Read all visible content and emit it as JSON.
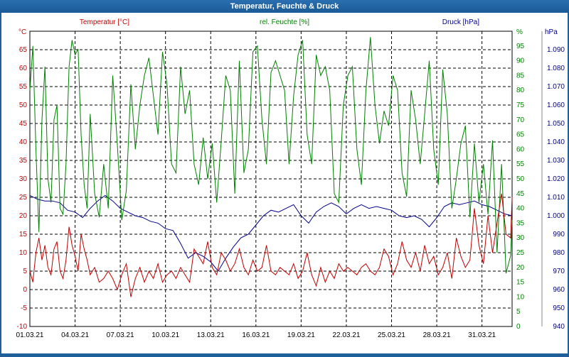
{
  "window": {
    "title": "Temperatur, Feuchte & Druck"
  },
  "chart_data": {
    "type": "line",
    "title": "Temperatur, Feuchte & Druck",
    "grid": true,
    "x_tick_labels": [
      "01.03.21",
      "04.03.21",
      "07.03.21",
      "10.03.21",
      "13.03.21",
      "16.03.21",
      "19.03.21",
      "22.03.21",
      "25.03.21",
      "28.03.21",
      "31.03.21"
    ],
    "x_range_days": [
      0,
      32
    ],
    "axes": {
      "temperature": {
        "label": "Temperatur [°C]",
        "unit": "°C",
        "color": "#c00000",
        "range": [
          -10,
          70
        ],
        "ticks": [
          -10,
          -5,
          0,
          5,
          10,
          15,
          20,
          25,
          30,
          35,
          40,
          45,
          50,
          55,
          60,
          65
        ]
      },
      "humidity": {
        "label": "rel. Feuchte [%]",
        "unit": "%",
        "color": "#008000",
        "range": [
          0,
          100
        ],
        "ticks": [
          0,
          5,
          10,
          15,
          20,
          25,
          30,
          35,
          40,
          45,
          50,
          55,
          60,
          65,
          70,
          75,
          80,
          85,
          90,
          95
        ]
      },
      "pressure": {
        "label": "Druck [hPa]",
        "unit": "hPa",
        "color": "#00008b",
        "range": [
          940,
          1100
        ],
        "ticks": [
          "940",
          "950",
          "960",
          "970",
          "980",
          "990",
          "1.000",
          "1.010",
          "1.020",
          "1.030",
          "1.040",
          "1.050",
          "1.060",
          "1.070",
          "1.080",
          "1.090"
        ]
      }
    },
    "series": [
      {
        "name": "Temperatur [°C]",
        "axis": "temperature",
        "color": "#c00000",
        "x": [
          0,
          0.2,
          0.4,
          0.6,
          0.8,
          1,
          1.2,
          1.4,
          1.6,
          1.8,
          2,
          2.2,
          2.4,
          2.6,
          2.8,
          3,
          3.2,
          3.4,
          3.6,
          3.8,
          4,
          4.3,
          4.6,
          4.9,
          5.2,
          5.5,
          5.8,
          6.1,
          6.4,
          6.7,
          7,
          7.3,
          7.6,
          7.9,
          8.2,
          8.5,
          8.8,
          9.1,
          9.4,
          9.7,
          10,
          10.3,
          10.6,
          10.9,
          11.2,
          11.5,
          11.8,
          12.1,
          12.4,
          12.7,
          13,
          13.3,
          13.6,
          13.9,
          14.2,
          14.5,
          14.8,
          15.1,
          15.4,
          15.7,
          16,
          16.3,
          16.6,
          16.9,
          17.2,
          17.5,
          17.8,
          18.1,
          18.4,
          18.7,
          19,
          19.3,
          19.6,
          19.9,
          20.2,
          20.5,
          20.8,
          21.1,
          21.4,
          21.7,
          22,
          22.3,
          22.6,
          22.9,
          23.2,
          23.5,
          23.8,
          24.1,
          24.4,
          24.7,
          25,
          25.3,
          25.6,
          25.9,
          26.2,
          26.5,
          26.8,
          27.1,
          27.4,
          27.7,
          28,
          28.3,
          28.6,
          28.9,
          29.2,
          29.5,
          29.8,
          30.1,
          30.4,
          30.7,
          31,
          31.3,
          31.6,
          31.9,
          32
        ],
        "values": [
          5,
          2,
          10,
          14,
          8,
          12,
          6,
          4,
          11,
          13,
          5,
          3,
          8,
          17,
          12,
          9,
          5,
          15,
          11,
          8,
          4,
          6,
          2,
          3,
          5,
          3,
          0,
          4,
          7,
          -2,
          3,
          6,
          2,
          5,
          3,
          7,
          2,
          4,
          5,
          3,
          6,
          4,
          2,
          11,
          9,
          7,
          13,
          6,
          4,
          10,
          8,
          5,
          7,
          11,
          6,
          4,
          8,
          5,
          6,
          12,
          5,
          4,
          6,
          5,
          4,
          7,
          3,
          5,
          10,
          4,
          1,
          6,
          2,
          5,
          3,
          7,
          5,
          6,
          5,
          4,
          6,
          7,
          5,
          4,
          6,
          11,
          9,
          4,
          7,
          13,
          8,
          6,
          10,
          5,
          12,
          7,
          9,
          4,
          6,
          10,
          3,
          14,
          9,
          6,
          8,
          22,
          12,
          7,
          20,
          10,
          18,
          26,
          15,
          14,
          25
        ]
      },
      {
        "name": "rel. Feuchte [%]",
        "axis": "humidity",
        "color": "#008000",
        "x": [
          0,
          0.2,
          0.4,
          0.6,
          0.8,
          1,
          1.2,
          1.4,
          1.6,
          1.8,
          2,
          2.2,
          2.4,
          2.6,
          2.8,
          3,
          3.2,
          3.4,
          3.6,
          3.8,
          4,
          4.3,
          4.6,
          4.9,
          5.2,
          5.5,
          5.8,
          6.1,
          6.4,
          6.7,
          7,
          7.3,
          7.6,
          7.9,
          8.2,
          8.5,
          8.8,
          9.1,
          9.4,
          9.7,
          10,
          10.3,
          10.6,
          10.9,
          11.2,
          11.5,
          11.8,
          12.1,
          12.4,
          12.7,
          13,
          13.3,
          13.6,
          13.9,
          14.2,
          14.5,
          14.8,
          15.1,
          15.4,
          15.7,
          16,
          16.3,
          16.6,
          16.9,
          17.2,
          17.5,
          17.8,
          18.1,
          18.4,
          18.7,
          19,
          19.3,
          19.6,
          19.9,
          20.2,
          20.5,
          20.8,
          21.1,
          21.4,
          21.7,
          22,
          22.3,
          22.6,
          22.9,
          23.2,
          23.5,
          23.8,
          24.1,
          24.4,
          24.7,
          25,
          25.3,
          25.6,
          25.9,
          26.2,
          26.5,
          26.8,
          27.1,
          27.4,
          27.7,
          28,
          28.3,
          28.6,
          28.9,
          29.2,
          29.5,
          29.8,
          30.1,
          30.4,
          30.7,
          31,
          31.3,
          31.6,
          31.9,
          32
        ],
        "values": [
          80,
          95,
          60,
          32,
          70,
          88,
          50,
          42,
          70,
          75,
          40,
          38,
          55,
          88,
          97,
          92,
          94,
          65,
          48,
          40,
          72,
          45,
          37,
          55,
          40,
          85,
          62,
          36,
          46,
          82,
          60,
          75,
          85,
          91,
          78,
          65,
          93,
          82,
          55,
          52,
          88,
          72,
          80,
          55,
          48,
          64,
          50,
          62,
          42,
          63,
          85,
          80,
          45,
          90,
          52,
          60,
          93,
          95,
          70,
          55,
          86,
          90,
          85,
          80,
          55,
          78,
          92,
          97,
          65,
          55,
          92,
          85,
          88,
          80,
          45,
          42,
          75,
          85,
          88,
          60,
          48,
          80,
          98,
          75,
          62,
          73,
          68,
          85,
          80,
          52,
          44,
          80,
          70,
          55,
          72,
          90,
          60,
          48,
          87,
          72,
          40,
          50,
          62,
          68,
          37,
          62,
          42,
          55,
          38,
          63,
          25,
          55,
          18,
          24,
          36
        ]
      },
      {
        "name": "Druck [hPa]",
        "axis": "pressure",
        "color": "#00008b",
        "x": [
          0,
          0.5,
          1,
          1.5,
          2,
          2.5,
          3,
          3.5,
          4,
          4.5,
          5,
          5.5,
          6,
          6.5,
          7,
          7.5,
          8,
          8.5,
          9,
          9.5,
          10,
          10.5,
          11,
          11.5,
          12,
          12.5,
          13,
          13.5,
          14,
          14.5,
          15,
          15.5,
          16,
          16.5,
          17,
          17.5,
          18,
          18.5,
          19,
          19.5,
          20,
          20.5,
          21,
          21.5,
          22,
          22.5,
          23,
          23.5,
          24,
          24.5,
          25,
          25.5,
          26,
          26.5,
          27,
          27.5,
          28,
          28.5,
          29,
          29.5,
          30,
          30.5,
          31,
          31.5,
          32
        ],
        "values": [
          1011,
          1009,
          1008,
          1008,
          1007,
          1003,
          1002,
          999,
          1004,
          1008,
          1011,
          1008,
          1004,
          1002,
          1000,
          999,
          997,
          996,
          993,
          992,
          985,
          977,
          980,
          978,
          975,
          970,
          977,
          983,
          988,
          990,
          995,
          1000,
          1003,
          1002,
          1004,
          1006,
          1000,
          996,
          1002,
          1005,
          1007,
          1005,
          1001,
          1004,
          1006,
          1004,
          1005,
          1004,
          1003,
          1000,
          999,
          1000,
          998,
          994,
          999,
          1005,
          1007,
          1006,
          1007,
          1008,
          1006,
          1005,
          1003,
          1001,
          1000
        ]
      }
    ]
  }
}
